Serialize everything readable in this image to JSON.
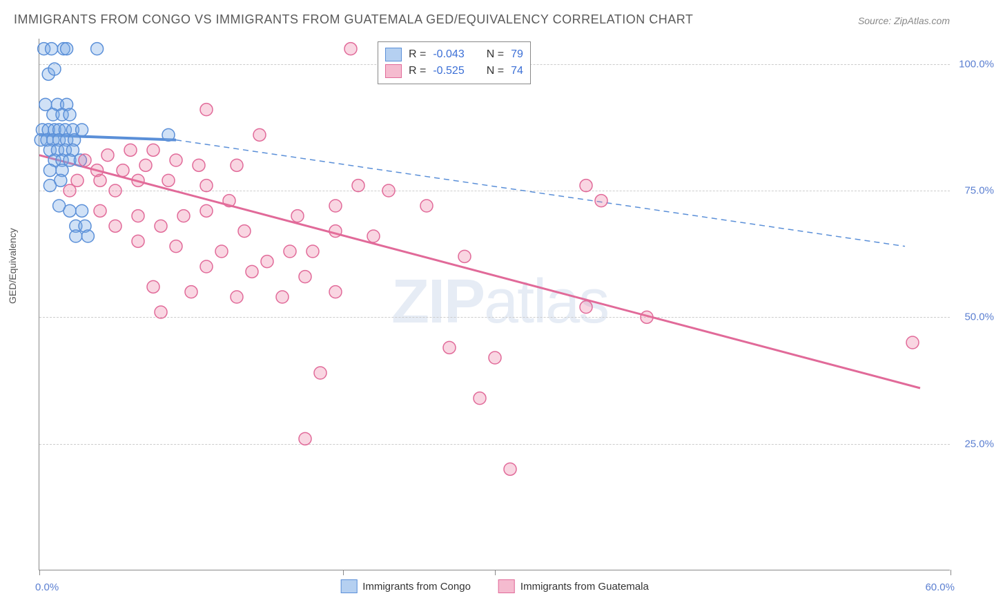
{
  "title": "IMMIGRANTS FROM CONGO VS IMMIGRANTS FROM GUATEMALA GED/EQUIVALENCY CORRELATION CHART",
  "source": "Source: ZipAtlas.com",
  "ylabel": "GED/Equivalency",
  "watermark_a": "ZIP",
  "watermark_b": "atlas",
  "chart": {
    "type": "scatter",
    "xlim": [
      0,
      60
    ],
    "ylim": [
      0,
      105
    ],
    "y_ticks": [
      25,
      50,
      75,
      100
    ],
    "y_tick_labels": [
      "25.0%",
      "50.0%",
      "75.0%",
      "100.0%"
    ],
    "x_tick_positions": [
      0,
      20,
      30,
      60
    ],
    "x_tick_labels": [
      "0.0%",
      "",
      "",
      "60.0%"
    ],
    "grid_color": "#cccccc",
    "background_color": "#ffffff",
    "axis_color": "#888888",
    "tick_label_color": "#5b7fd1",
    "marker_radius": 9,
    "marker_stroke_width": 1.5,
    "series": [
      {
        "name": "Immigrants from Congo",
        "fill": "rgba(120,170,230,0.35)",
        "stroke": "#5a8fd8",
        "r_value": "-0.043",
        "n_value": "79",
        "points": [
          [
            0.3,
            103
          ],
          [
            0.8,
            103
          ],
          [
            1.6,
            103
          ],
          [
            1.8,
            103
          ],
          [
            3.8,
            103
          ],
          [
            0.6,
            98
          ],
          [
            1.0,
            99
          ],
          [
            0.4,
            92
          ],
          [
            1.2,
            92
          ],
          [
            1.8,
            92
          ],
          [
            0.9,
            90
          ],
          [
            1.5,
            90
          ],
          [
            2.0,
            90
          ],
          [
            0.2,
            87
          ],
          [
            0.6,
            87
          ],
          [
            1.0,
            87
          ],
          [
            1.3,
            87
          ],
          [
            1.7,
            87
          ],
          [
            2.2,
            87
          ],
          [
            2.8,
            87
          ],
          [
            0.1,
            85
          ],
          [
            0.5,
            85
          ],
          [
            0.9,
            85
          ],
          [
            1.3,
            85
          ],
          [
            1.8,
            85
          ],
          [
            2.3,
            85
          ],
          [
            0.7,
            83
          ],
          [
            1.2,
            83
          ],
          [
            1.7,
            83
          ],
          [
            2.2,
            83
          ],
          [
            1.0,
            81
          ],
          [
            1.5,
            81
          ],
          [
            2.0,
            81
          ],
          [
            2.7,
            81
          ],
          [
            8.5,
            86
          ],
          [
            0.7,
            79
          ],
          [
            1.5,
            79
          ],
          [
            0.7,
            76
          ],
          [
            1.4,
            77
          ],
          [
            1.3,
            72
          ],
          [
            2.0,
            71
          ],
          [
            2.8,
            71
          ],
          [
            2.4,
            68
          ],
          [
            3.0,
            68
          ],
          [
            2.4,
            66
          ],
          [
            3.2,
            66
          ]
        ],
        "trend": {
          "x1": 0,
          "y1": 86,
          "x2_solid": 9,
          "y2_solid": 85,
          "x2": 57,
          "y2": 64,
          "solid_width": 4,
          "dash_width": 1.5,
          "dash": "8 6"
        }
      },
      {
        "name": "Immigrants from Guatemala",
        "fill": "rgba(235,120,160,0.30)",
        "stroke": "#e16a99",
        "r_value": "-0.525",
        "n_value": "74",
        "points": [
          [
            20.5,
            103
          ],
          [
            11.0,
            91
          ],
          [
            14.5,
            86
          ],
          [
            6.0,
            83
          ],
          [
            7.5,
            83
          ],
          [
            3.0,
            81
          ],
          [
            4.5,
            82
          ],
          [
            9.0,
            81
          ],
          [
            3.8,
            79
          ],
          [
            5.5,
            79
          ],
          [
            7.0,
            80
          ],
          [
            10.5,
            80
          ],
          [
            13.0,
            80
          ],
          [
            2.5,
            77
          ],
          [
            4.0,
            77
          ],
          [
            6.5,
            77
          ],
          [
            8.5,
            77
          ],
          [
            11.0,
            76
          ],
          [
            2.0,
            75
          ],
          [
            5.0,
            75
          ],
          [
            12.5,
            73
          ],
          [
            21.0,
            76
          ],
          [
            23.0,
            75
          ],
          [
            4.0,
            71
          ],
          [
            6.5,
            70
          ],
          [
            9.5,
            70
          ],
          [
            11.0,
            71
          ],
          [
            17.0,
            70
          ],
          [
            19.5,
            72
          ],
          [
            25.5,
            72
          ],
          [
            37.0,
            73
          ],
          [
            36.0,
            76
          ],
          [
            5.0,
            68
          ],
          [
            8.0,
            68
          ],
          [
            13.5,
            67
          ],
          [
            19.5,
            67
          ],
          [
            22.0,
            66
          ],
          [
            6.5,
            65
          ],
          [
            9.0,
            64
          ],
          [
            12.0,
            63
          ],
          [
            16.5,
            63
          ],
          [
            28.0,
            62
          ],
          [
            11.0,
            60
          ],
          [
            14.0,
            59
          ],
          [
            15.0,
            61
          ],
          [
            17.5,
            58
          ],
          [
            18.0,
            63
          ],
          [
            7.5,
            56
          ],
          [
            10.0,
            55
          ],
          [
            13.0,
            54
          ],
          [
            16.0,
            54
          ],
          [
            19.5,
            55
          ],
          [
            8.0,
            51
          ],
          [
            36.0,
            52
          ],
          [
            40.0,
            50
          ],
          [
            27.0,
            44
          ],
          [
            30.0,
            42
          ],
          [
            57.5,
            45
          ],
          [
            18.5,
            39
          ],
          [
            29.0,
            34
          ],
          [
            17.5,
            26
          ],
          [
            31.0,
            20
          ]
        ],
        "trend": {
          "x1": 0,
          "y1": 82,
          "x2_solid": 58,
          "y2_solid": 36,
          "x2": 58,
          "y2": 36,
          "solid_width": 3,
          "dash_width": 0,
          "dash": ""
        }
      }
    ]
  },
  "legend_top": {
    "r_label": "R =",
    "n_label": "N ="
  },
  "legend_bottom": {
    "items": [
      "Immigrants from Congo",
      "Immigrants from Guatemala"
    ]
  },
  "colors": {
    "congo_swatch_fill": "rgba(120,170,230,0.55)",
    "congo_swatch_border": "#5a8fd8",
    "guat_swatch_fill": "rgba(235,120,160,0.5)",
    "guat_swatch_border": "#e16a99"
  }
}
